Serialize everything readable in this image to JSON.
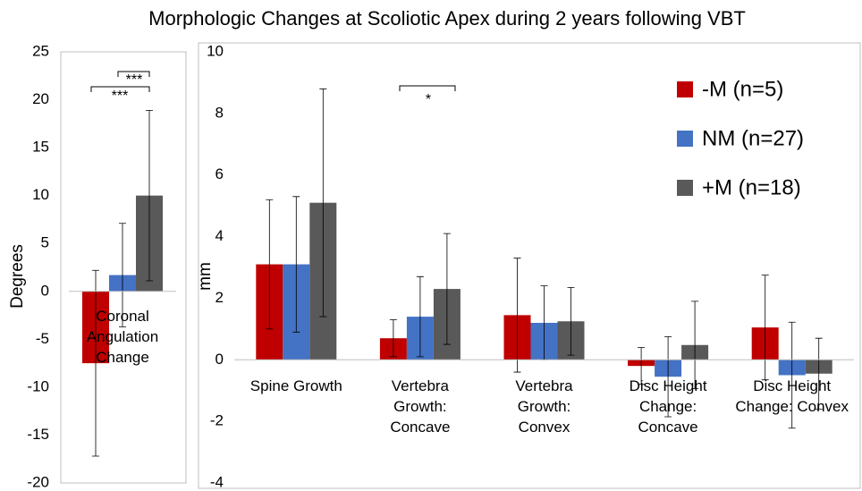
{
  "title": "Morphologic Changes at Scoliotic Apex during 2 years following VBT",
  "chart_data": [
    {
      "type": "bar",
      "ylabel": "Degrees",
      "ylim": [
        -20,
        25
      ],
      "yticks": [
        -20,
        -15,
        -10,
        -5,
        0,
        5,
        10,
        15,
        20,
        25
      ],
      "categories": [
        "Coronal Angulation Change"
      ],
      "series": [
        {
          "color": "#c00000",
          "values": [
            -7.5
          ],
          "errors": [
            9.7
          ]
        },
        {
          "color": "#4472c4",
          "values": [
            1.7
          ],
          "errors": [
            5.4
          ]
        },
        {
          "color": "#595959",
          "values": [
            10
          ],
          "errors": [
            8.9
          ]
        }
      ],
      "annotations": [
        "***",
        "***"
      ]
    },
    {
      "type": "bar",
      "ylabel": "mm",
      "ylim": [
        -4,
        10
      ],
      "yticks": [
        -4,
        -2,
        0,
        2,
        4,
        6,
        8,
        10
      ],
      "categories": [
        "Spine Growth",
        "Vertebra Growth: Concave",
        "Vertebra Growth: Convex",
        "Disc Height Change: Concave",
        "Disc Height Change: Convex"
      ],
      "series": [
        {
          "name": "-M (n=5)",
          "color": "#c00000",
          "values": [
            3.1,
            0.7,
            1.45,
            -0.2,
            1.05
          ],
          "errors": [
            2.1,
            0.6,
            1.85,
            0.6,
            1.7
          ]
        },
        {
          "name": "NM (n=27)",
          "color": "#4472c4",
          "values": [
            3.1,
            1.4,
            1.2,
            -0.55,
            -0.5
          ],
          "errors": [
            2.2,
            1.3,
            1.2,
            1.3,
            1.72
          ]
        },
        {
          "name": "+M (n=18)",
          "color": "#595959",
          "values": [
            5.1,
            2.3,
            1.25,
            0.48,
            -0.45
          ],
          "errors": [
            3.7,
            1.8,
            1.1,
            1.42,
            1.15
          ]
        }
      ],
      "annotations": [
        "*"
      ],
      "legend": "top-right"
    }
  ]
}
